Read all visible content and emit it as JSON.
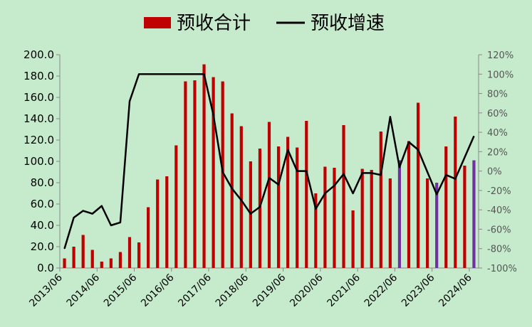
{
  "chart_data": {
    "type": "bar+line",
    "title": "",
    "legend": {
      "position": "top",
      "entries": [
        {
          "label": "预收合计",
          "color": "#c00000",
          "kind": "bar"
        },
        {
          "label": "预收增速",
          "color": "#000000",
          "kind": "line"
        }
      ]
    },
    "y_left": {
      "min": 0,
      "max": 200,
      "step": 20,
      "ticks": [
        "0.0",
        "20.0",
        "40.0",
        "60.0",
        "80.0",
        "100.0",
        "120.0",
        "140.0",
        "160.0",
        "180.0",
        "200.0"
      ]
    },
    "y_right": {
      "min": -100,
      "max": 120,
      "step": 20,
      "ticks": [
        "-100%",
        "-80%",
        "-60%",
        "-40%",
        "-20%",
        "0%",
        "20%",
        "40%",
        "60%",
        "80%",
        "100%",
        "120%"
      ]
    },
    "x_labels": [
      "2013/06",
      "2014/06",
      "2015/06",
      "2016/06",
      "2017/06",
      "2018/06",
      "2019/06",
      "2020/06",
      "2021/06",
      "2022/06",
      "2023/06",
      "2024/06"
    ],
    "periods_per_year": 4,
    "bar_color": "#c00000",
    "highlight_color": "#7030a0",
    "series": [
      {
        "name": "预收合计",
        "kind": "bar",
        "values": [
          9,
          20,
          31,
          17,
          6,
          9,
          15,
          29,
          24,
          57,
          83,
          86,
          115,
          175,
          176,
          191,
          179,
          175,
          145,
          133,
          100,
          112,
          137,
          114,
          123,
          113,
          138,
          70,
          95,
          94,
          134,
          54,
          93,
          92,
          128,
          84,
          null,
          119,
          155,
          84,
          null,
          114,
          142,
          96,
          null
        ],
        "highlight_values": [
          null,
          null,
          null,
          null,
          null,
          null,
          null,
          null,
          null,
          null,
          null,
          null,
          null,
          null,
          null,
          null,
          null,
          null,
          null,
          null,
          null,
          null,
          null,
          null,
          null,
          null,
          null,
          null,
          null,
          null,
          null,
          null,
          null,
          null,
          null,
          null,
          101,
          null,
          null,
          null,
          80,
          null,
          null,
          null,
          101
        ]
      },
      {
        "name": "预收增速",
        "kind": "line",
        "axis": "right",
        "values": [
          -80,
          -48,
          -41,
          -44,
          -36,
          -56,
          -53,
          72,
          100,
          100,
          100,
          100,
          100,
          100,
          100,
          100,
          58,
          -1,
          -18,
          -30,
          -44,
          -37,
          -7,
          -14,
          22,
          0,
          0,
          -39,
          -23,
          -15,
          -3,
          -23,
          -2,
          -2,
          -4,
          56,
          4,
          30,
          22,
          -1,
          -24,
          -4,
          -8,
          14,
          36
        ]
      }
    ]
  }
}
